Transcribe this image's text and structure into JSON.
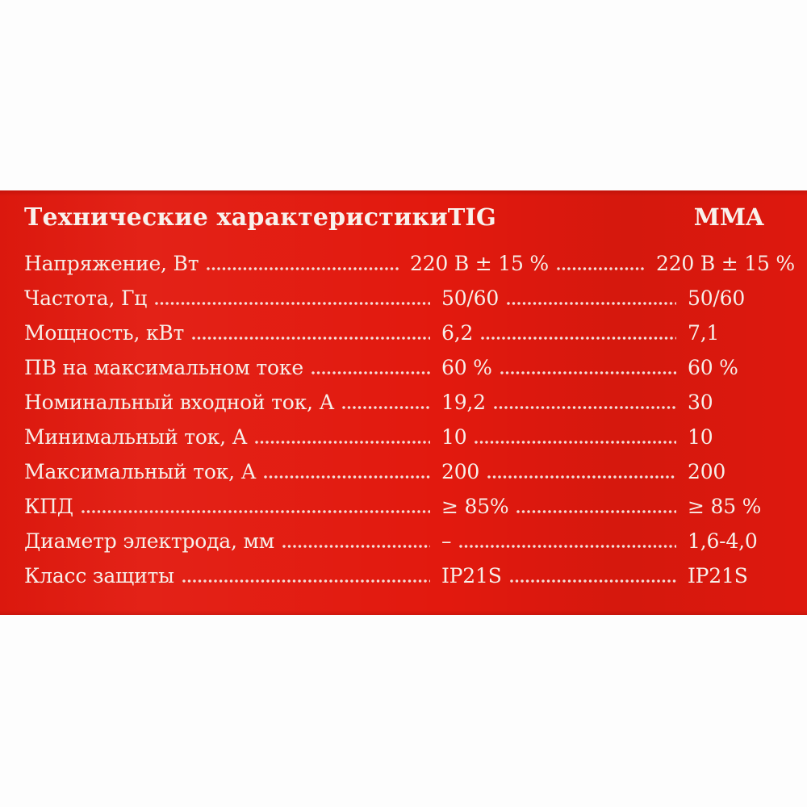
{
  "panel": {
    "colors": {
      "background_red": "#e2190e",
      "text": "#f7efe9",
      "page_background": "#fdfdfd"
    },
    "header": {
      "title": "Технические характеристики",
      "col_tig": "TIG",
      "col_mma": "MMA"
    },
    "rows": [
      {
        "label": "Напряжение, Вт",
        "tig": "220 В ± 15 %",
        "mma": "220 В ± 15 %"
      },
      {
        "label": "Частота, Гц",
        "tig": "50/60",
        "mma": "50/60"
      },
      {
        "label": "Мощность, кВт",
        "tig": "6,2",
        "mma": "7,1"
      },
      {
        "label": "ПВ на максимальном токе",
        "tig": "60 %",
        "mma": "60 %"
      },
      {
        "label": "Номинальный входной ток, А",
        "tig": "19,2",
        "mma": "30"
      },
      {
        "label": "Минимальный ток, А",
        "tig": "10",
        "mma": "10"
      },
      {
        "label": "Максимальный ток, А",
        "tig": "200",
        "mma": "200"
      },
      {
        "label": "КПД",
        "tig": "≥ 85%",
        "mma": "≥ 85 %"
      },
      {
        "label": "Диаметр электрода, мм",
        "tig": "–",
        "mma": "1,6-4,0"
      },
      {
        "label": "Класс защиты",
        "tig": "IP21S",
        "mma": "IP21S"
      }
    ]
  }
}
